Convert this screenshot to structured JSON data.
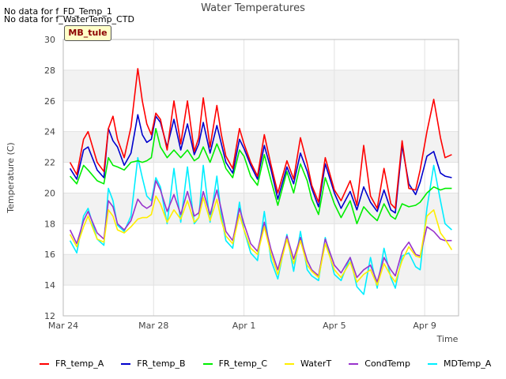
{
  "notes": [
    "No data for f_FD_Temp_1",
    "No data for f_WaterTemp_CTD"
  ],
  "site_badge": "MB_tule",
  "chart_data": {
    "type": "line",
    "title": "Water Temperatures",
    "xlabel": "Time",
    "ylabel": "Temperature (C)",
    "ylim": [
      12,
      30
    ],
    "yticks": [
      12,
      14,
      16,
      18,
      20,
      22,
      24,
      26,
      28,
      30
    ],
    "xlim_days": [
      0,
      17.5
    ],
    "xticks": [
      {
        "day": 0,
        "label": "Mar 24"
      },
      {
        "day": 4,
        "label": "Mar 28"
      },
      {
        "day": 8,
        "label": "Apr 1"
      },
      {
        "day": 12,
        "label": "Apr 5"
      },
      {
        "day": 16,
        "label": "Apr 9"
      }
    ],
    "grid": true,
    "legend_position": "bottom",
    "series": [
      {
        "name": "FR_temp_A",
        "color": "#ff0000",
        "x": [
          0.3,
          0.6,
          0.9,
          1.1,
          1.5,
          1.8,
          2.0,
          2.2,
          2.4,
          2.7,
          3.0,
          3.3,
          3.5,
          3.7,
          3.9,
          4.1,
          4.3,
          4.6,
          4.9,
          5.2,
          5.5,
          5.8,
          6.0,
          6.2,
          6.5,
          6.8,
          7.0,
          7.2,
          7.5,
          7.8,
          8.0,
          8.3,
          8.6,
          8.9,
          9.2,
          9.5,
          9.9,
          10.2,
          10.5,
          10.8,
          11.0,
          11.3,
          11.6,
          12.0,
          12.3,
          12.7,
          13.0,
          13.3,
          13.6,
          13.9,
          14.2,
          14.5,
          14.7,
          15.0,
          15.3,
          15.6,
          15.8,
          16.1,
          16.4,
          16.7,
          16.9,
          17.2
        ],
        "y": [
          22.0,
          21.2,
          23.5,
          24.0,
          22.0,
          21.4,
          24.2,
          25.0,
          23.5,
          22.3,
          24.3,
          28.1,
          26.0,
          24.5,
          23.8,
          25.2,
          24.8,
          22.8,
          26.0,
          23.2,
          26.0,
          22.7,
          23.6,
          26.2,
          23.0,
          25.7,
          23.8,
          22.4,
          21.6,
          24.2,
          23.2,
          22.0,
          21.1,
          23.8,
          21.8,
          20.0,
          22.1,
          20.9,
          23.6,
          21.9,
          20.5,
          19.4,
          22.3,
          20.2,
          19.5,
          20.8,
          19.2,
          23.1,
          19.8,
          19.0,
          21.6,
          19.3,
          19.0,
          23.4,
          20.3,
          20.2,
          21.5,
          24.0,
          26.1,
          23.6,
          22.3,
          22.5
        ]
      },
      {
        "name": "FR_temp_B",
        "color": "#0000cc",
        "x": [
          0.3,
          0.6,
          0.9,
          1.1,
          1.5,
          1.8,
          2.0,
          2.2,
          2.4,
          2.7,
          3.0,
          3.3,
          3.5,
          3.7,
          3.9,
          4.1,
          4.3,
          4.6,
          4.9,
          5.2,
          5.5,
          5.8,
          6.0,
          6.2,
          6.5,
          6.8,
          7.0,
          7.2,
          7.5,
          7.8,
          8.0,
          8.3,
          8.6,
          8.9,
          9.2,
          9.5,
          9.9,
          10.2,
          10.5,
          10.8,
          11.0,
          11.3,
          11.6,
          12.0,
          12.3,
          12.7,
          13.0,
          13.3,
          13.6,
          13.9,
          14.2,
          14.5,
          14.7,
          15.0,
          15.3,
          15.6,
          15.8,
          16.1,
          16.4,
          16.7,
          16.9,
          17.2
        ],
        "y": [
          21.6,
          20.9,
          22.8,
          23.0,
          21.5,
          21.0,
          24.2,
          23.4,
          23.0,
          21.8,
          22.6,
          25.1,
          23.8,
          23.3,
          23.5,
          25.0,
          24.6,
          23.0,
          24.8,
          22.8,
          24.5,
          22.5,
          23.2,
          24.6,
          22.6,
          24.4,
          23.2,
          22.0,
          21.3,
          23.5,
          22.9,
          21.8,
          20.9,
          23.1,
          21.5,
          19.6,
          21.7,
          20.6,
          22.6,
          21.4,
          20.3,
          19.1,
          21.9,
          20.0,
          19.0,
          20.1,
          18.9,
          20.4,
          19.4,
          18.8,
          20.2,
          18.9,
          18.7,
          23.1,
          20.6,
          19.9,
          20.7,
          22.4,
          22.7,
          21.3,
          21.1,
          21.0
        ]
      },
      {
        "name": "FR_temp_C",
        "color": "#00ee00",
        "x": [
          0.3,
          0.6,
          0.9,
          1.1,
          1.5,
          1.8,
          2.0,
          2.2,
          2.4,
          2.7,
          3.0,
          3.3,
          3.5,
          3.7,
          3.9,
          4.1,
          4.3,
          4.6,
          4.9,
          5.2,
          5.5,
          5.8,
          6.0,
          6.2,
          6.5,
          6.8,
          7.0,
          7.2,
          7.5,
          7.8,
          8.0,
          8.3,
          8.6,
          8.9,
          9.2,
          9.5,
          9.9,
          10.2,
          10.5,
          10.8,
          11.0,
          11.3,
          11.6,
          12.0,
          12.3,
          12.7,
          13.0,
          13.3,
          13.6,
          13.9,
          14.2,
          14.5,
          14.7,
          15.0,
          15.3,
          15.6,
          15.8,
          16.1,
          16.4,
          16.7,
          16.9,
          17.2
        ],
        "y": [
          21.1,
          20.6,
          21.8,
          21.5,
          20.8,
          20.6,
          22.3,
          21.8,
          21.7,
          21.5,
          22.0,
          22.1,
          22.0,
          22.1,
          22.3,
          24.2,
          23.0,
          22.3,
          22.8,
          22.3,
          22.8,
          22.1,
          22.3,
          23.0,
          22.0,
          23.2,
          22.5,
          21.6,
          21.0,
          22.8,
          22.4,
          21.1,
          20.5,
          22.5,
          20.8,
          19.2,
          21.4,
          20.0,
          21.9,
          20.8,
          19.6,
          18.6,
          21.0,
          19.3,
          18.4,
          19.5,
          18.0,
          19.1,
          18.6,
          18.2,
          19.3,
          18.5,
          18.3,
          19.3,
          19.1,
          19.2,
          19.4,
          20.0,
          20.4,
          20.2,
          20.3,
          20.3
        ]
      },
      {
        "name": "WaterT",
        "color": "#ffee00",
        "x": [
          0.3,
          0.6,
          0.9,
          1.1,
          1.5,
          1.8,
          2.0,
          2.2,
          2.4,
          2.7,
          3.0,
          3.3,
          3.5,
          3.7,
          3.9,
          4.1,
          4.3,
          4.6,
          4.9,
          5.2,
          5.5,
          5.8,
          6.0,
          6.2,
          6.5,
          6.8,
          7.0,
          7.2,
          7.5,
          7.8,
          8.0,
          8.3,
          8.6,
          8.9,
          9.2,
          9.5,
          9.9,
          10.2,
          10.5,
          10.8,
          11.0,
          11.3,
          11.6,
          12.0,
          12.3,
          12.7,
          13.0,
          13.3,
          13.6,
          13.9,
          14.2,
          14.5,
          14.7,
          15.0,
          15.3,
          15.6,
          15.8,
          16.1,
          16.4,
          16.7,
          16.9,
          17.2
        ],
        "y": [
          17.3,
          16.5,
          17.8,
          18.5,
          17.0,
          16.8,
          18.9,
          18.5,
          17.6,
          17.4,
          17.8,
          18.3,
          18.4,
          18.4,
          18.6,
          19.8,
          19.3,
          18.1,
          18.9,
          18.3,
          19.5,
          18.1,
          18.4,
          19.7,
          18.2,
          19.6,
          18.2,
          17.2,
          16.7,
          18.6,
          17.6,
          16.4,
          16.0,
          17.8,
          16.0,
          14.7,
          17.0,
          15.4,
          16.9,
          15.3,
          14.9,
          14.5,
          16.7,
          15.0,
          14.5,
          15.5,
          14.2,
          14.7,
          15.0,
          14.0,
          15.4,
          14.6,
          14.2,
          15.6,
          16.5,
          15.9,
          15.8,
          18.5,
          18.9,
          17.4,
          17.0,
          16.3
        ]
      },
      {
        "name": "CondTemp",
        "color": "#9933cc",
        "x": [
          0.3,
          0.6,
          0.9,
          1.1,
          1.5,
          1.8,
          2.0,
          2.2,
          2.4,
          2.7,
          3.0,
          3.3,
          3.5,
          3.7,
          3.9,
          4.1,
          4.3,
          4.6,
          4.9,
          5.2,
          5.5,
          5.8,
          6.0,
          6.2,
          6.5,
          6.8,
          7.0,
          7.2,
          7.5,
          7.8,
          8.0,
          8.3,
          8.6,
          8.9,
          9.2,
          9.5,
          9.9,
          10.2,
          10.5,
          10.8,
          11.0,
          11.3,
          11.6,
          12.0,
          12.3,
          12.7,
          13.0,
          13.3,
          13.6,
          13.9,
          14.2,
          14.5,
          14.7,
          15.0,
          15.3,
          15.6,
          15.8,
          16.1,
          16.4,
          16.7,
          16.9,
          17.2
        ],
        "y": [
          17.6,
          16.7,
          18.2,
          18.8,
          17.4,
          17.0,
          19.5,
          19.1,
          18.0,
          17.6,
          18.2,
          19.6,
          19.2,
          19.0,
          19.2,
          20.8,
          20.2,
          18.8,
          19.9,
          18.6,
          20.1,
          18.5,
          18.7,
          20.1,
          18.6,
          20.2,
          18.9,
          17.5,
          16.9,
          19.0,
          18.0,
          16.7,
          16.2,
          18.1,
          16.3,
          15.0,
          17.2,
          15.7,
          17.1,
          15.6,
          15.0,
          14.6,
          17.0,
          15.3,
          14.8,
          15.8,
          14.5,
          15.0,
          15.3,
          14.2,
          15.8,
          15.0,
          14.6,
          16.2,
          16.8,
          16.0,
          15.9,
          17.8,
          17.5,
          17.0,
          16.9,
          16.9
        ]
      },
      {
        "name": "MDTemp_A",
        "color": "#00eeff",
        "x": [
          0.3,
          0.6,
          0.9,
          1.1,
          1.5,
          1.8,
          2.0,
          2.2,
          2.4,
          2.7,
          3.0,
          3.3,
          3.5,
          3.7,
          3.9,
          4.1,
          4.3,
          4.6,
          4.9,
          5.2,
          5.5,
          5.8,
          6.0,
          6.2,
          6.5,
          6.8,
          7.0,
          7.2,
          7.5,
          7.8,
          8.0,
          8.3,
          8.6,
          8.9,
          9.2,
          9.5,
          9.9,
          10.2,
          10.5,
          10.8,
          11.0,
          11.3,
          11.6,
          12.0,
          12.3,
          12.7,
          13.0,
          13.3,
          13.6,
          13.9,
          14.2,
          14.5,
          14.7,
          15.0,
          15.3,
          15.6,
          15.8,
          16.1,
          16.4,
          16.7,
          16.9,
          17.2
        ],
        "y": [
          16.9,
          16.1,
          18.5,
          19.0,
          17.0,
          16.6,
          20.3,
          19.5,
          17.9,
          17.5,
          18.5,
          22.3,
          21.0,
          19.8,
          19.5,
          21.0,
          20.4,
          18.0,
          21.6,
          18.1,
          21.7,
          18.0,
          18.4,
          21.8,
          18.1,
          21.1,
          18.5,
          16.9,
          16.4,
          19.4,
          17.6,
          16.1,
          15.6,
          18.8,
          15.6,
          14.4,
          17.3,
          14.9,
          17.5,
          15.0,
          14.6,
          14.3,
          17.1,
          14.7,
          14.3,
          15.8,
          13.9,
          13.4,
          15.8,
          13.8,
          16.4,
          14.5,
          13.8,
          15.9,
          16.1,
          15.2,
          15.0,
          19.0,
          21.8,
          19.5,
          18.0,
          17.6
        ]
      }
    ]
  }
}
